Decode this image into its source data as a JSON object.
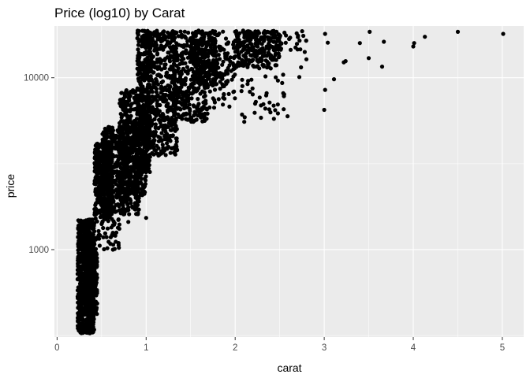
{
  "chart_data": {
    "type": "scatter",
    "title": "Price (log10) by Carat",
    "xlabel": "carat",
    "ylabel": "price",
    "xlim": [
      -0.03,
      5.24
    ],
    "ylim": [
      310,
      20000
    ],
    "y_scale": "log10",
    "x_ticks": [
      0,
      1,
      2,
      3,
      4,
      5
    ],
    "x_tick_labels": [
      "0",
      "1",
      "2",
      "3",
      "4",
      "5"
    ],
    "y_ticks": [
      1000,
      10000
    ],
    "y_tick_labels": [
      "1000",
      "10000"
    ],
    "grid": true,
    "point_color": "#000000",
    "background": "#ebebeb",
    "grid_color": "#ffffff",
    "clusters": [
      {
        "x": [
          0.23,
          0.42
        ],
        "y": [
          326,
          1500
        ],
        "n": 650
      },
      {
        "x": [
          0.3,
          0.45
        ],
        "y": [
          420,
          1000
        ],
        "n": 250
      },
      {
        "x": [
          0.42,
          0.62
        ],
        "y": [
          1500,
          4200
        ],
        "n": 420
      },
      {
        "x": [
          0.5,
          0.92
        ],
        "y": [
          1600,
          5200
        ],
        "n": 500
      },
      {
        "x": [
          0.7,
          1.0
        ],
        "y": [
          2000,
          8500
        ],
        "n": 450
      },
      {
        "x": [
          0.9,
          1.05
        ],
        "y": [
          2800,
          18800
        ],
        "n": 360
      },
      {
        "x": [
          1.0,
          1.35
        ],
        "y": [
          3500,
          18800
        ],
        "n": 500
      },
      {
        "x": [
          1.3,
          1.7
        ],
        "y": [
          5500,
          18800
        ],
        "n": 320
      },
      {
        "x": [
          1.5,
          1.8
        ],
        "y": [
          9000,
          18800
        ],
        "n": 220
      },
      {
        "x": [
          1.7,
          2.0
        ],
        "y": [
          6500,
          18800
        ],
        "n": 110
      },
      {
        "x": [
          2.0,
          2.5
        ],
        "y": [
          11500,
          18800
        ],
        "n": 260
      },
      {
        "x": [
          2.0,
          2.6
        ],
        "y": [
          5500,
          11500
        ],
        "n": 40
      },
      {
        "x": [
          2.5,
          2.8
        ],
        "y": [
          14000,
          18800
        ],
        "n": 25
      },
      {
        "x": [
          0.25,
          0.7
        ],
        "y": [
          1000,
          1500
        ],
        "n": 80
      }
    ],
    "outliers": [
      {
        "x": 3.0,
        "y": 6500
      },
      {
        "x": 3.01,
        "y": 8500
      },
      {
        "x": 3.01,
        "y": 18000
      },
      {
        "x": 3.04,
        "y": 16000
      },
      {
        "x": 3.11,
        "y": 9800
      },
      {
        "x": 3.22,
        "y": 12300
      },
      {
        "x": 3.24,
        "y": 12500
      },
      {
        "x": 3.4,
        "y": 15900
      },
      {
        "x": 3.5,
        "y": 13000
      },
      {
        "x": 3.51,
        "y": 18500
      },
      {
        "x": 3.65,
        "y": 11600
      },
      {
        "x": 3.67,
        "y": 16200
      },
      {
        "x": 4.0,
        "y": 15200
      },
      {
        "x": 4.01,
        "y": 15900
      },
      {
        "x": 4.13,
        "y": 17300
      },
      {
        "x": 4.5,
        "y": 18500
      },
      {
        "x": 5.01,
        "y": 18000
      },
      {
        "x": 2.74,
        "y": 11500
      },
      {
        "x": 2.8,
        "y": 12800
      },
      {
        "x": 2.55,
        "y": 8000
      },
      {
        "x": 2.48,
        "y": 6200
      },
      {
        "x": 2.29,
        "y": 6900
      },
      {
        "x": 2.72,
        "y": 10100
      },
      {
        "x": 1.0,
        "y": 1530
      },
      {
        "x": 0.7,
        "y": 1400
      },
      {
        "x": 0.8,
        "y": 1450
      }
    ]
  }
}
